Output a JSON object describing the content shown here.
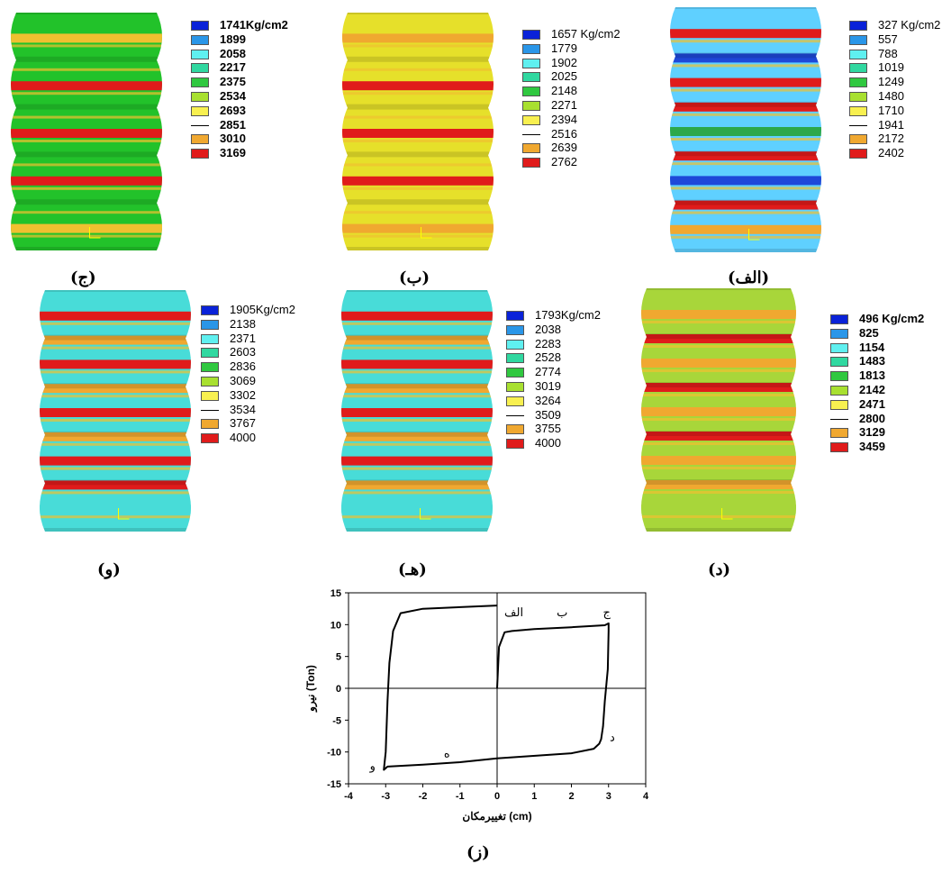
{
  "panels": [
    {
      "id": "jim",
      "caption": "(ج)",
      "unit": "Kg/cm2",
      "first": "1741",
      "firstSep": "",
      "labels": [
        "1741",
        "1899",
        "2058",
        "2217",
        "2375",
        "2534",
        "2693",
        "2851",
        "3010",
        "3169"
      ],
      "base": "#22c22a",
      "bands": [
        "#f0c030",
        "#22c22a",
        "#e01b1b",
        "#22c22a",
        "#e01b1b",
        "#22c22a",
        "#e01b1b",
        "#22c22a",
        "#f0c030"
      ]
    },
    {
      "id": "be",
      "caption": "(ب)",
      "unit": "Kg/cm2",
      "first": "1657",
      "firstSep": " ",
      "labels": [
        "1657",
        "1779",
        "1902",
        "2025",
        "2148",
        "2271",
        "2394",
        "2516",
        "2639",
        "2762"
      ],
      "base": "#e6e02a",
      "bands": [
        "#f0a830",
        "#e6e02a",
        "#e01b1b",
        "#e6e02a",
        "#e01b1b",
        "#e6e02a",
        "#e01b1b",
        "#e6e02a",
        "#f0a830"
      ]
    },
    {
      "id": "alef",
      "caption": "(الف)",
      "unit": "Kg/cm2",
      "first": "327",
      "firstSep": " ",
      "labels": [
        "327",
        "557",
        "788",
        "1019",
        "1249",
        "1480",
        "1710",
        "1941",
        "2172",
        "2402"
      ],
      "base": "#5fd0ff",
      "bands": [
        "#e01b1b",
        "#1e48d8",
        "#e01b1b",
        "#e01b1b",
        "#2ca84a",
        "#e01b1b",
        "#1e48d8",
        "#e01b1b",
        "#f0a830"
      ]
    },
    {
      "id": "vav",
      "caption": "(و)",
      "unit": "Kg/cm2",
      "first": "1905",
      "firstSep": "",
      "labels": [
        "1905",
        "2138",
        "2371",
        "2603",
        "2836",
        "3069",
        "3302",
        "3534",
        "3767",
        "4000"
      ],
      "base": "#48dcd8",
      "bands": [
        "#e01b1b",
        "#f0a830",
        "#e01b1b",
        "#f0a830",
        "#e01b1b",
        "#f0a830",
        "#e01b1b",
        "#e01b1b",
        "#48dcd8"
      ]
    },
    {
      "id": "he",
      "caption": "(هـ)",
      "unit": "Kg/cm2",
      "first": "1793",
      "firstSep": "",
      "labels": [
        "1793",
        "2038",
        "2283",
        "2528",
        "2774",
        "3019",
        "3264",
        "3509",
        "3755",
        "4000"
      ],
      "base": "#48dcd8",
      "bands": [
        "#e01b1b",
        "#f0a830",
        "#e01b1b",
        "#f0a830",
        "#e01b1b",
        "#f0a830",
        "#e01b1b",
        "#f0a830",
        "#48dcd8"
      ]
    },
    {
      "id": "dal",
      "caption": "(د)",
      "unit": "Kg/cm2",
      "first": "496",
      "firstSep": " ",
      "labels": [
        "496",
        "825",
        "1154",
        "1483",
        "1813",
        "2142",
        "2471",
        "2800",
        "3129",
        "3459"
      ],
      "base": "#a8d63a",
      "bands": [
        "#f0a830",
        "#e01b1b",
        "#f0a830",
        "#e01b1b",
        "#f0a830",
        "#e01b1b",
        "#f0a830",
        "#f0a830",
        "#a8d63a"
      ]
    }
  ],
  "legend_colors": [
    "#0a22d8",
    "#2a96e8",
    "#5ff0f0",
    "#30d8a0",
    "#30c840",
    "#a8e030",
    "#f8f050",
    "#ffffff",
    "#f0a830",
    "#e01b1b"
  ],
  "graph": {
    "caption": "(ز)",
    "xlabel": "تغییرمکان (cm)",
    "ylabel": "نیرو (Ton)",
    "point_labels": {
      "alef": "الف",
      "be": "ب",
      "jim": "ج",
      "dal": "د",
      "he": "ه",
      "vav": "و"
    }
  },
  "chart_data": {
    "type": "line",
    "xlabel": "تغییرمکان (cm)",
    "ylabel": "نیرو (Ton)",
    "xlim": [
      -4,
      4
    ],
    "ylim": [
      -15,
      15
    ],
    "xticks": [
      -4,
      -3,
      -2,
      -1,
      0,
      1,
      2,
      3,
      4
    ],
    "yticks": [
      -15,
      -10,
      -5,
      0,
      5,
      10,
      15
    ],
    "grid": false,
    "series": [
      {
        "x": [
          0,
          0.05,
          0.2,
          0.4,
          1.0,
          2.0,
          2.9,
          3.0,
          3.0,
          2.98,
          2.9,
          2.85,
          2.8,
          2.75,
          2.6,
          2.0,
          0,
          -1.0,
          -2.0,
          -2.95,
          -3.05,
          -3.0,
          -2.95,
          -2.9,
          -2.8,
          -2.6,
          -2.0,
          0
        ],
        "y": [
          0,
          6.5,
          8.8,
          9.0,
          9.3,
          9.6,
          9.9,
          10.2,
          9.0,
          3.0,
          -2.0,
          -6.0,
          -8.0,
          -8.7,
          -9.5,
          -10.2,
          -11.0,
          -11.6,
          -12.0,
          -12.3,
          -12.8,
          -10.0,
          -2.0,
          4.0,
          9.0,
          11.8,
          12.5,
          13.0
        ]
      }
    ]
  }
}
